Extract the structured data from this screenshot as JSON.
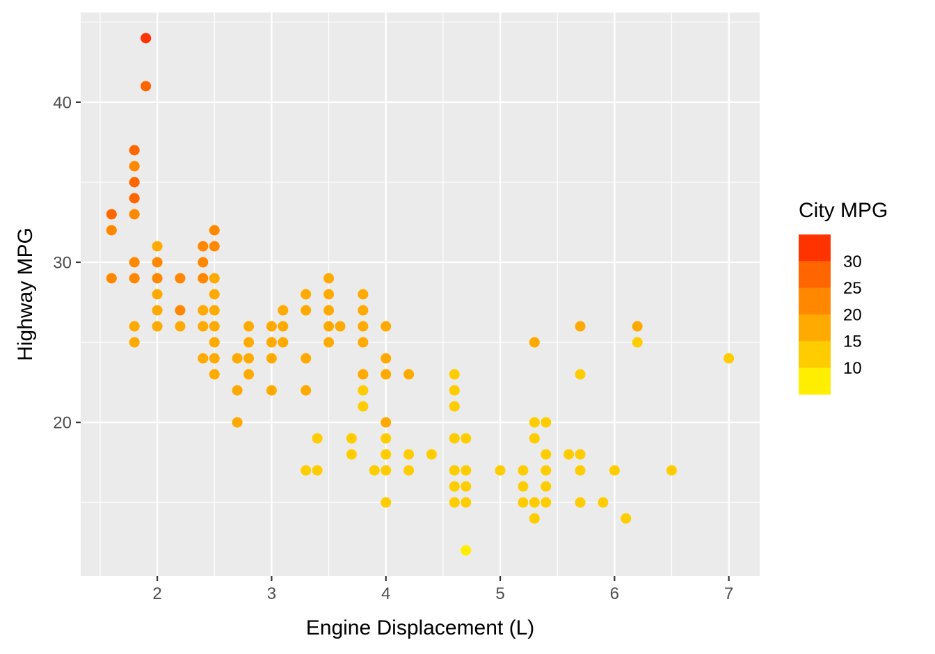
{
  "chart_data": {
    "type": "scatter",
    "title": "",
    "xlabel": "Engine Displacement (L)",
    "ylabel": "Highway MPG",
    "xlim": [
      1.33,
      7.27
    ],
    "ylim": [
      10.4,
      45.6
    ],
    "x_ticks": [
      2,
      3,
      4,
      5,
      6,
      7
    ],
    "y_ticks": [
      20,
      30,
      40
    ],
    "grid": true,
    "panel_background": "#EBEBEB",
    "grid_color": "#FFFFFF",
    "legend": {
      "title": "City MPG",
      "position": "right",
      "type": "binned",
      "bins": [
        {
          "color": "#FFEE00",
          "range": "<10"
        },
        {
          "color": "#FFCC00",
          "range": "10-15"
        },
        {
          "color": "#FFAA00",
          "range": "15-20"
        },
        {
          "color": "#FF8800",
          "range": "20-25"
        },
        {
          "color": "#FF6600",
          "range": "25-30"
        },
        {
          "color": "#FF3300",
          "range": ">30"
        }
      ],
      "labels": [
        "30",
        "25",
        "20",
        "15",
        "10"
      ]
    },
    "color_variable": "City MPG",
    "points": [
      {
        "x": 1.9,
        "y": 44,
        "cty": 35
      },
      {
        "x": 1.9,
        "y": 41,
        "cty": 29
      },
      {
        "x": 1.8,
        "y": 37,
        "cty": 28
      },
      {
        "x": 1.8,
        "y": 36,
        "cty": 24
      },
      {
        "x": 1.8,
        "y": 35,
        "cty": 26
      },
      {
        "x": 1.8,
        "y": 34,
        "cty": 26
      },
      {
        "x": 1.8,
        "y": 33,
        "cty": 24
      },
      {
        "x": 1.6,
        "y": 33,
        "cty": 28
      },
      {
        "x": 1.6,
        "y": 32,
        "cty": 24
      },
      {
        "x": 1.6,
        "y": 29,
        "cty": 24
      },
      {
        "x": 1.8,
        "y": 30,
        "cty": 21
      },
      {
        "x": 1.8,
        "y": 29,
        "cty": 21
      },
      {
        "x": 1.8,
        "y": 26,
        "cty": 18
      },
      {
        "x": 1.8,
        "y": 25,
        "cty": 18
      },
      {
        "x": 2.0,
        "y": 31,
        "cty": 19
      },
      {
        "x": 2.0,
        "y": 30,
        "cty": 21
      },
      {
        "x": 2.0,
        "y": 29,
        "cty": 22
      },
      {
        "x": 2.0,
        "y": 28,
        "cty": 19
      },
      {
        "x": 2.0,
        "y": 27,
        "cty": 19
      },
      {
        "x": 2.0,
        "y": 26,
        "cty": 19
      },
      {
        "x": 2.2,
        "y": 29,
        "cty": 21
      },
      {
        "x": 2.2,
        "y": 27,
        "cty": 20
      },
      {
        "x": 2.2,
        "y": 26,
        "cty": 19
      },
      {
        "x": 2.4,
        "y": 31,
        "cty": 22
      },
      {
        "x": 2.4,
        "y": 30,
        "cty": 21
      },
      {
        "x": 2.4,
        "y": 29,
        "cty": 21
      },
      {
        "x": 2.4,
        "y": 27,
        "cty": 19
      },
      {
        "x": 2.4,
        "y": 26,
        "cty": 18
      },
      {
        "x": 2.4,
        "y": 24,
        "cty": 18
      },
      {
        "x": 2.5,
        "y": 32,
        "cty": 20
      },
      {
        "x": 2.5,
        "y": 31,
        "cty": 20
      },
      {
        "x": 2.5,
        "y": 29,
        "cty": 19
      },
      {
        "x": 2.5,
        "y": 28,
        "cty": 18
      },
      {
        "x": 2.5,
        "y": 27,
        "cty": 18
      },
      {
        "x": 2.5,
        "y": 26,
        "cty": 18
      },
      {
        "x": 2.5,
        "y": 25,
        "cty": 18
      },
      {
        "x": 2.5,
        "y": 24,
        "cty": 18
      },
      {
        "x": 2.5,
        "y": 23,
        "cty": 18
      },
      {
        "x": 2.7,
        "y": 24,
        "cty": 17
      },
      {
        "x": 2.7,
        "y": 22,
        "cty": 16
      },
      {
        "x": 2.7,
        "y": 20,
        "cty": 16
      },
      {
        "x": 2.8,
        "y": 26,
        "cty": 17
      },
      {
        "x": 2.8,
        "y": 25,
        "cty": 17
      },
      {
        "x": 2.8,
        "y": 24,
        "cty": 17
      },
      {
        "x": 2.8,
        "y": 23,
        "cty": 16
      },
      {
        "x": 3.0,
        "y": 26,
        "cty": 18
      },
      {
        "x": 3.0,
        "y": 25,
        "cty": 18
      },
      {
        "x": 3.0,
        "y": 24,
        "cty": 17
      },
      {
        "x": 3.0,
        "y": 22,
        "cty": 16
      },
      {
        "x": 3.1,
        "y": 27,
        "cty": 18
      },
      {
        "x": 3.1,
        "y": 26,
        "cty": 18
      },
      {
        "x": 3.1,
        "y": 25,
        "cty": 18
      },
      {
        "x": 3.3,
        "y": 28,
        "cty": 17
      },
      {
        "x": 3.3,
        "y": 27,
        "cty": 17
      },
      {
        "x": 3.3,
        "y": 24,
        "cty": 17
      },
      {
        "x": 3.3,
        "y": 22,
        "cty": 16
      },
      {
        "x": 3.3,
        "y": 17,
        "cty": 14
      },
      {
        "x": 3.4,
        "y": 19,
        "cty": 14
      },
      {
        "x": 3.4,
        "y": 17,
        "cty": 14
      },
      {
        "x": 3.5,
        "y": 29,
        "cty": 18
      },
      {
        "x": 3.5,
        "y": 28,
        "cty": 18
      },
      {
        "x": 3.5,
        "y": 27,
        "cty": 17
      },
      {
        "x": 3.5,
        "y": 26,
        "cty": 17
      },
      {
        "x": 3.5,
        "y": 25,
        "cty": 17
      },
      {
        "x": 3.6,
        "y": 26,
        "cty": 17
      },
      {
        "x": 3.7,
        "y": 19,
        "cty": 14
      },
      {
        "x": 3.7,
        "y": 18,
        "cty": 14
      },
      {
        "x": 3.8,
        "y": 28,
        "cty": 18
      },
      {
        "x": 3.8,
        "y": 27,
        "cty": 17
      },
      {
        "x": 3.8,
        "y": 26,
        "cty": 17
      },
      {
        "x": 3.8,
        "y": 25,
        "cty": 17
      },
      {
        "x": 3.8,
        "y": 23,
        "cty": 16
      },
      {
        "x": 3.8,
        "y": 22,
        "cty": 14
      },
      {
        "x": 3.8,
        "y": 21,
        "cty": 14
      },
      {
        "x": 3.9,
        "y": 17,
        "cty": 14
      },
      {
        "x": 4.0,
        "y": 26,
        "cty": 16
      },
      {
        "x": 4.0,
        "y": 24,
        "cty": 16
      },
      {
        "x": 4.0,
        "y": 23,
        "cty": 16
      },
      {
        "x": 4.0,
        "y": 20,
        "cty": 15
      },
      {
        "x": 4.0,
        "y": 19,
        "cty": 14
      },
      {
        "x": 4.0,
        "y": 18,
        "cty": 14
      },
      {
        "x": 4.0,
        "y": 17,
        "cty": 14
      },
      {
        "x": 4.0,
        "y": 15,
        "cty": 12
      },
      {
        "x": 4.2,
        "y": 23,
        "cty": 16
      },
      {
        "x": 4.2,
        "y": 18,
        "cty": 14
      },
      {
        "x": 4.2,
        "y": 17,
        "cty": 14
      },
      {
        "x": 4.4,
        "y": 18,
        "cty": 14
      },
      {
        "x": 4.6,
        "y": 23,
        "cty": 14
      },
      {
        "x": 4.6,
        "y": 22,
        "cty": 14
      },
      {
        "x": 4.6,
        "y": 21,
        "cty": 14
      },
      {
        "x": 4.6,
        "y": 19,
        "cty": 13
      },
      {
        "x": 4.6,
        "y": 17,
        "cty": 13
      },
      {
        "x": 4.6,
        "y": 16,
        "cty": 12
      },
      {
        "x": 4.6,
        "y": 15,
        "cty": 12
      },
      {
        "x": 4.7,
        "y": 19,
        "cty": 13
      },
      {
        "x": 4.7,
        "y": 17,
        "cty": 13
      },
      {
        "x": 4.7,
        "y": 16,
        "cty": 12
      },
      {
        "x": 4.7,
        "y": 15,
        "cty": 12
      },
      {
        "x": 4.7,
        "y": 12,
        "cty": 9
      },
      {
        "x": 5.0,
        "y": 17,
        "cty": 13
      },
      {
        "x": 5.2,
        "y": 17,
        "cty": 13
      },
      {
        "x": 5.2,
        "y": 16,
        "cty": 12
      },
      {
        "x": 5.2,
        "y": 15,
        "cty": 11
      },
      {
        "x": 5.3,
        "y": 25,
        "cty": 15
      },
      {
        "x": 5.3,
        "y": 20,
        "cty": 14
      },
      {
        "x": 5.3,
        "y": 19,
        "cty": 14
      },
      {
        "x": 5.3,
        "y": 15,
        "cty": 11
      },
      {
        "x": 5.3,
        "y": 14,
        "cty": 11
      },
      {
        "x": 5.4,
        "y": 20,
        "cty": 13
      },
      {
        "x": 5.4,
        "y": 18,
        "cty": 13
      },
      {
        "x": 5.4,
        "y": 17,
        "cty": 12
      },
      {
        "x": 5.4,
        "y": 16,
        "cty": 12
      },
      {
        "x": 5.4,
        "y": 15,
        "cty": 11
      },
      {
        "x": 5.6,
        "y": 18,
        "cty": 12
      },
      {
        "x": 5.7,
        "y": 26,
        "cty": 16
      },
      {
        "x": 5.7,
        "y": 23,
        "cty": 14
      },
      {
        "x": 5.7,
        "y": 18,
        "cty": 13
      },
      {
        "x": 5.7,
        "y": 17,
        "cty": 13
      },
      {
        "x": 5.7,
        "y": 15,
        "cty": 11
      },
      {
        "x": 5.9,
        "y": 15,
        "cty": 11
      },
      {
        "x": 6.0,
        "y": 17,
        "cty": 12
      },
      {
        "x": 6.1,
        "y": 14,
        "cty": 11
      },
      {
        "x": 6.2,
        "y": 26,
        "cty": 16
      },
      {
        "x": 6.2,
        "y": 25,
        "cty": 14
      },
      {
        "x": 6.5,
        "y": 17,
        "cty": 14
      },
      {
        "x": 7.0,
        "y": 24,
        "cty": 14
      }
    ]
  }
}
